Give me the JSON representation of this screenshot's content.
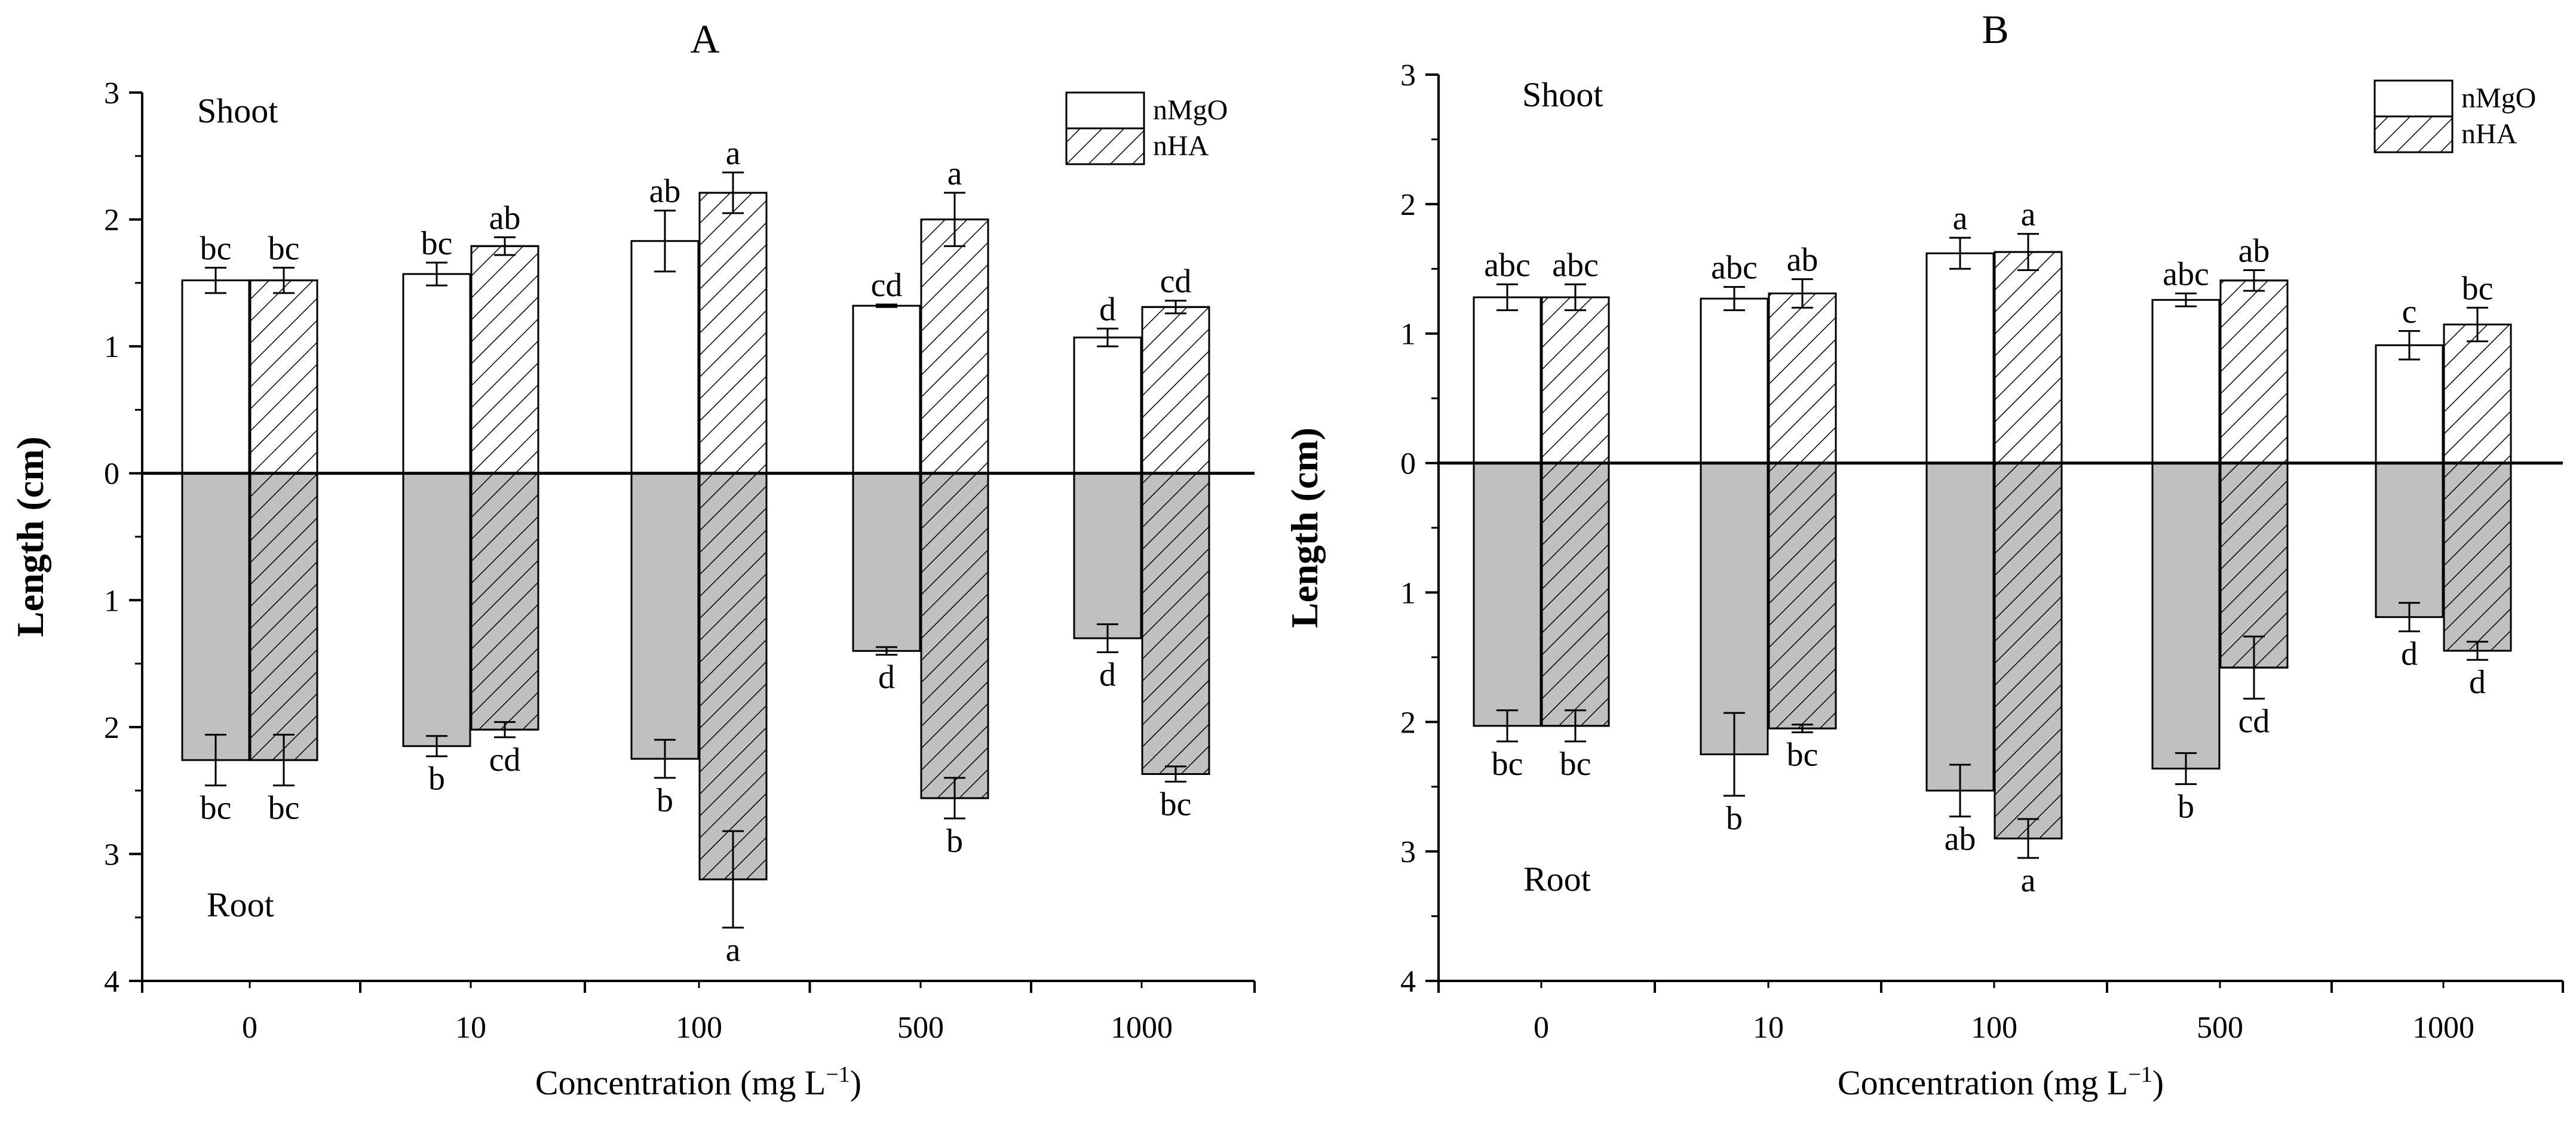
{
  "chart_data": [
    {
      "type": "bar",
      "panel_label": "A",
      "categories": [
        "0",
        "10",
        "100",
        "500",
        "1000"
      ],
      "xlabel": "Concentration (mg L",
      "xlabel_superscript": "−1",
      "xlabel_close": ")",
      "ylabel": "Length (cm)",
      "ylim": [
        -4,
        3
      ],
      "yticks": [
        -4,
        -3,
        -2,
        -1,
        0,
        1,
        2,
        3
      ],
      "ytick_labels": [
        "4",
        "3",
        "2",
        "1",
        "0",
        "1",
        "2",
        "3"
      ],
      "region_labels": {
        "shoot": "Shoot",
        "root": "Root"
      },
      "legend": {
        "position": "top-right",
        "entries": [
          "nMgO",
          "nHA"
        ]
      },
      "series": [
        {
          "name": "nMgO",
          "part": "shoot",
          "values": [
            1.52,
            1.57,
            1.83,
            1.32,
            1.07
          ],
          "errors": [
            0.1,
            0.09,
            0.24,
            0.01,
            0.07
          ],
          "letters": [
            "bc",
            "bc",
            "ab",
            "cd",
            "d"
          ]
        },
        {
          "name": "nHA",
          "part": "shoot",
          "values": [
            1.52,
            1.79,
            2.21,
            2.0,
            1.31
          ],
          "errors": [
            0.1,
            0.07,
            0.16,
            0.21,
            0.05
          ],
          "letters": [
            "bc",
            "ab",
            "a",
            "a",
            "cd"
          ]
        },
        {
          "name": "nMgO",
          "part": "root",
          "values": [
            2.26,
            2.15,
            2.25,
            1.4,
            1.3
          ],
          "errors": [
            0.2,
            0.08,
            0.15,
            0.03,
            0.11
          ],
          "letters": [
            "bc",
            "b",
            "b",
            "d",
            "d"
          ]
        },
        {
          "name": "nHA",
          "part": "root",
          "values": [
            2.26,
            2.02,
            3.2,
            2.56,
            2.37
          ],
          "errors": [
            0.2,
            0.06,
            0.38,
            0.16,
            0.06
          ],
          "letters": [
            "bc",
            "cd",
            "a",
            "b",
            "bc"
          ]
        }
      ]
    },
    {
      "type": "bar",
      "panel_label": "B",
      "categories": [
        "0",
        "10",
        "100",
        "500",
        "1000"
      ],
      "xlabel": "Concentration (mg L",
      "xlabel_superscript": "−1",
      "xlabel_close": ")",
      "ylabel": "Length (cm)",
      "ylim": [
        -4,
        3
      ],
      "yticks": [
        -4,
        -3,
        -2,
        -1,
        0,
        1,
        2,
        3
      ],
      "ytick_labels": [
        "4",
        "3",
        "2",
        "1",
        "0",
        "1",
        "2",
        "3"
      ],
      "region_labels": {
        "shoot": "Shoot",
        "root": "Root"
      },
      "legend": {
        "position": "top-right",
        "entries": [
          "nMgO",
          "nHA"
        ]
      },
      "series": [
        {
          "name": "nMgO",
          "part": "shoot",
          "values": [
            1.28,
            1.27,
            1.62,
            1.26,
            0.91
          ],
          "errors": [
            0.1,
            0.09,
            0.12,
            0.05,
            0.11
          ],
          "letters": [
            "abc",
            "abc",
            "a",
            "abc",
            "c"
          ]
        },
        {
          "name": "nHA",
          "part": "shoot",
          "values": [
            1.28,
            1.31,
            1.63,
            1.41,
            1.07
          ],
          "errors": [
            0.1,
            0.11,
            0.14,
            0.08,
            0.13
          ],
          "letters": [
            "abc",
            "ab",
            "a",
            "ab",
            "bc"
          ]
        },
        {
          "name": "nMgO",
          "part": "root",
          "values": [
            2.03,
            2.25,
            2.53,
            2.36,
            1.19
          ],
          "errors": [
            0.12,
            0.32,
            0.2,
            0.12,
            0.11
          ],
          "letters": [
            "bc",
            "b",
            "ab",
            "b",
            "d"
          ]
        },
        {
          "name": "nHA",
          "part": "root",
          "values": [
            2.03,
            2.05,
            2.9,
            1.58,
            1.45
          ],
          "errors": [
            0.12,
            0.03,
            0.15,
            0.24,
            0.07
          ],
          "letters": [
            "bc",
            "bc",
            "a",
            "cd",
            "d"
          ]
        }
      ]
    }
  ]
}
